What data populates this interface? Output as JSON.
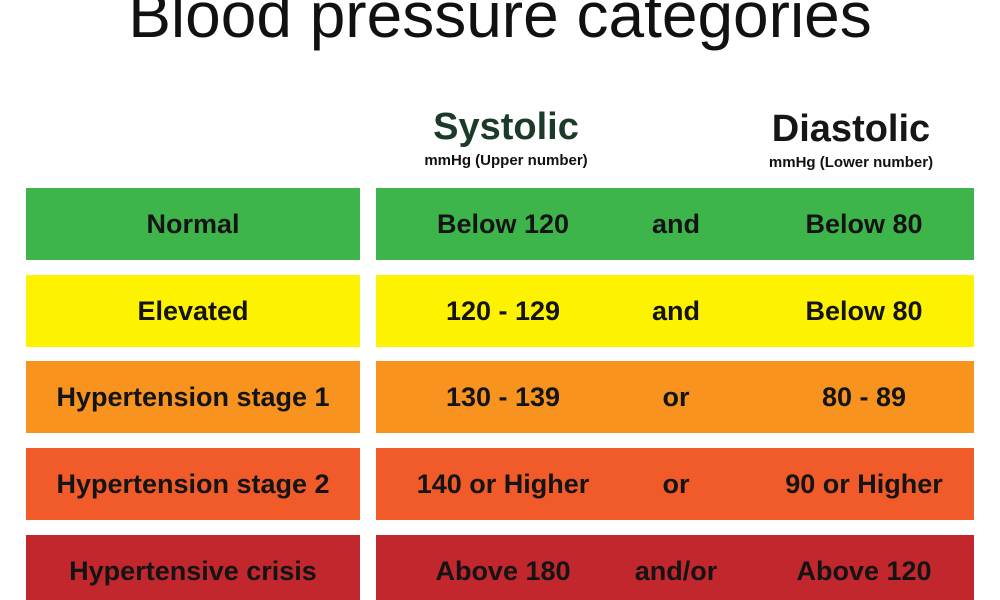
{
  "title": "Blood pressure categories",
  "columns": {
    "systolic": {
      "name": "Systolic",
      "unit": "mmHg (Upper number)"
    },
    "diastolic": {
      "name": "Diastolic",
      "unit": "mmHg (Lower number)"
    }
  },
  "rows": [
    {
      "category": "Normal",
      "systolic": "Below 120",
      "conjunction": "and",
      "diastolic": "Below 80",
      "color": "#3db54a"
    },
    {
      "category": "Elevated",
      "systolic": "120 - 129",
      "conjunction": "and",
      "diastolic": "Below 80",
      "color": "#fdf200"
    },
    {
      "category": "Hypertension stage 1",
      "systolic": "130 - 139",
      "conjunction": "or",
      "diastolic": "80 - 89",
      "color": "#f7931e"
    },
    {
      "category": "Hypertension stage 2",
      "systolic": "140 or Higher",
      "conjunction": "or",
      "diastolic": "90 or Higher",
      "color": "#f15a29"
    },
    {
      "category": "Hypertensive crisis",
      "systolic": "Above 180",
      "conjunction": "and/or",
      "diastolic": "Above 120",
      "color": "#c1272d"
    }
  ]
}
